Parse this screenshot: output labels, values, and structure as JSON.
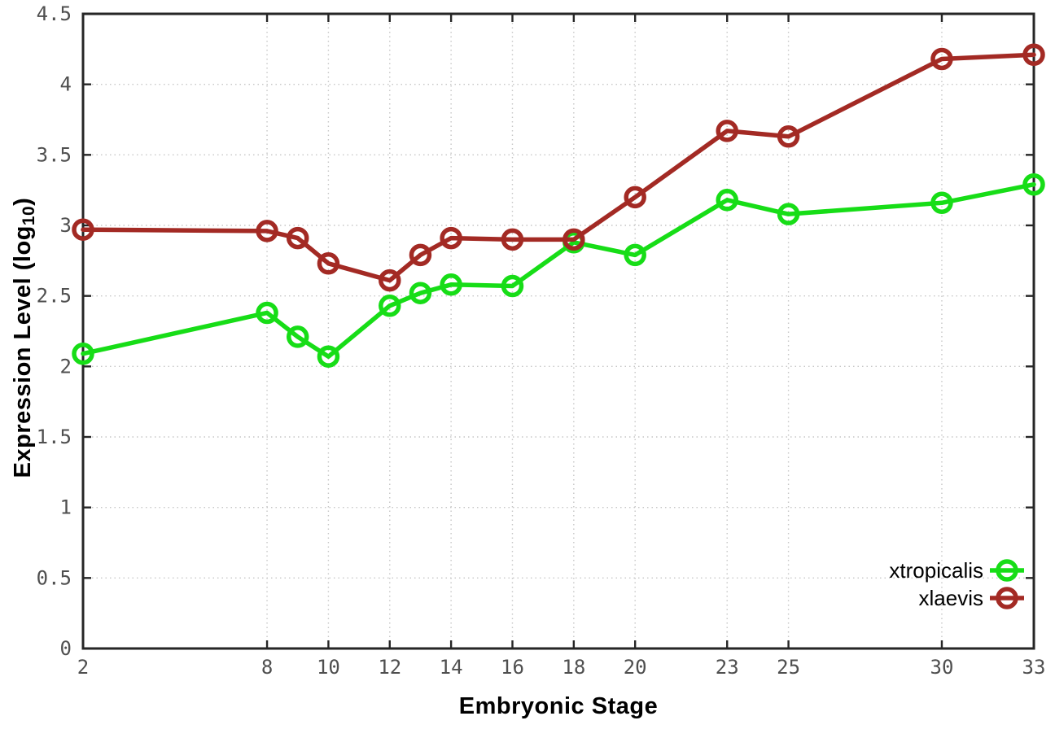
{
  "chart_data": {
    "type": "line",
    "title": "",
    "xlabel": "Embryonic Stage",
    "ylabel": "Expression Level (log10)",
    "ylabel_parts": {
      "main": "Expression Level (log",
      "sub": "10",
      "close": ")"
    },
    "x": [
      2,
      8,
      9,
      10,
      12,
      13,
      14,
      16,
      18,
      20,
      23,
      25,
      30,
      33
    ],
    "xlim": [
      2,
      33
    ],
    "ylim": [
      0,
      4.5
    ],
    "x_tick_values": [
      2,
      8,
      10,
      12,
      14,
      16,
      18,
      20,
      23,
      25,
      30,
      33
    ],
    "x_tick_labels": [
      "2",
      "8",
      "10",
      "12",
      "14",
      "16",
      "18",
      "20",
      "23",
      "25",
      "30",
      "33"
    ],
    "y_tick_values": [
      0,
      0.5,
      1,
      1.5,
      2,
      2.5,
      3,
      3.5,
      4,
      4.5
    ],
    "y_tick_labels": [
      "0",
      "0.5",
      "1",
      "1.5",
      "2",
      "2.5",
      "3",
      "3.5",
      "4",
      "4.5"
    ],
    "grid": true,
    "legend_position": "inside bottom-right",
    "marker": "open-circle",
    "series": [
      {
        "name": "xtropicalis",
        "color": "#17dd17",
        "values": [
          2.09,
          2.38,
          2.21,
          2.07,
          2.43,
          2.52,
          2.58,
          2.57,
          2.88,
          2.79,
          3.18,
          3.08,
          3.16,
          3.29
        ]
      },
      {
        "name": "xlaevis",
        "color": "#a32a24",
        "values": [
          2.97,
          2.96,
          2.91,
          2.73,
          2.61,
          2.79,
          2.91,
          2.9,
          2.9,
          3.2,
          3.67,
          3.63,
          4.18,
          4.21
        ]
      }
    ]
  },
  "colors": {
    "background": "#ffffff",
    "grid": "#c6c6c6",
    "axis": "#262626",
    "tick_label": "#4f4f4f",
    "axis_title": "#000000",
    "legend_text": "#000000"
  }
}
